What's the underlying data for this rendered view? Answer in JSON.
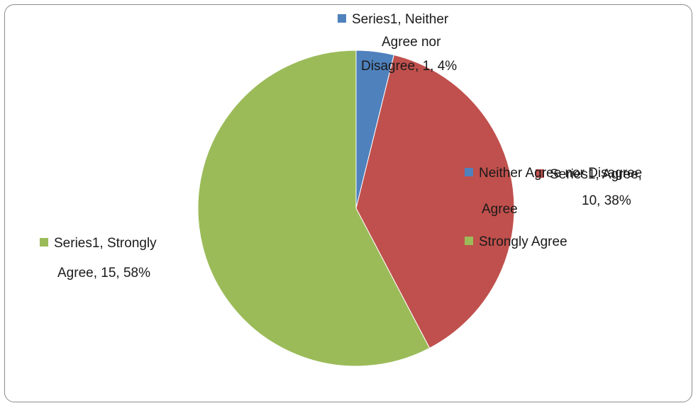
{
  "chart_data": {
    "type": "pie",
    "title": "",
    "series": [
      {
        "name": "Series1",
        "categories": [
          "Neither Agree nor Disagree",
          "Agree",
          "Strongly Agree"
        ],
        "values": [
          1,
          10,
          15
        ],
        "percents": [
          "4%",
          "38%",
          "58%"
        ]
      }
    ],
    "colors": [
      "#4f81bd",
      "#c0504d",
      "#9bbb59"
    ],
    "data_labels": {
      "neither": {
        "line1": "Series1, Neither",
        "line2": "Agree nor",
        "line3": "Disagree, 1, 4%"
      },
      "agree": {
        "line1": "Series1, Agree,",
        "line2": "10, 38%"
      },
      "strongly": {
        "line1": "Series1, Strongly",
        "line2": "Agree, 15, 58%"
      }
    },
    "legend": {
      "position": "right",
      "items": [
        "Neither Agree nor Disagree",
        "Agree",
        "Strongly Agree"
      ]
    }
  }
}
